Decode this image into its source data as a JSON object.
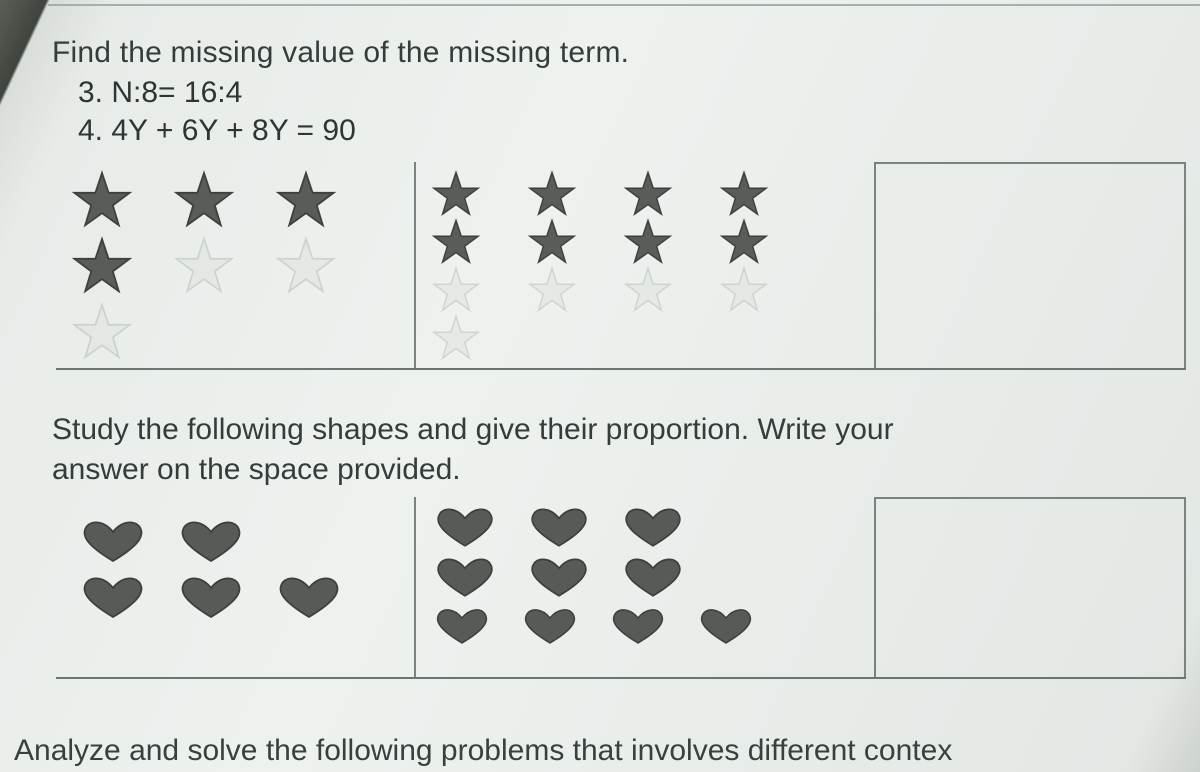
{
  "colors": {
    "text": "#2f3532",
    "rule": "#7c837d",
    "star_dark_fill": "#4c514d",
    "star_dark_stroke": "#2e332f",
    "star_light_fill": "#dfe4e0",
    "star_light_stroke": "#b7bdb8",
    "heart_dark_fill": "#4a4f4b",
    "heart_dark_stroke": "#2d322e",
    "heart_light_fill": "#c7cdc8",
    "heart_light_stroke": "#a7aea8"
  },
  "section1": {
    "instruction": "Find the missing value of the missing term.",
    "q3": "3.  N:8= 16:4",
    "q4": "4. 4Y + 6Y + 8Y = 90"
  },
  "stars_table": {
    "cell1": {
      "rows": [
        [
          "dark",
          "dark",
          "dark"
        ],
        [
          "dark",
          "light",
          "light"
        ],
        [
          "light"
        ]
      ]
    },
    "cell2": {
      "rows": [
        [
          "dark",
          "dark",
          "dark",
          "dark"
        ],
        [
          "dark",
          "dark",
          "dark",
          "dark"
        ],
        [
          "light",
          "light",
          "light",
          "light"
        ],
        [
          "light"
        ]
      ]
    },
    "answer": ""
  },
  "section2": {
    "instruction_line1": "Study the following shapes and give their proportion. Write your",
    "instruction_line2": "answer on the  space provided."
  },
  "hearts_table": {
    "cell1": {
      "rows": [
        [
          "dark",
          "dark"
        ],
        [
          "dark",
          "dark",
          "dark"
        ]
      ]
    },
    "cell2": {
      "rows": [
        [
          "dark",
          "dark",
          "dark"
        ],
        [
          "dark",
          "dark",
          "dark"
        ],
        [
          "dark",
          "dark",
          "dark",
          "dark"
        ]
      ]
    },
    "answer": ""
  },
  "footer_cut": "Analyze and solve the following problems that involves different contex"
}
